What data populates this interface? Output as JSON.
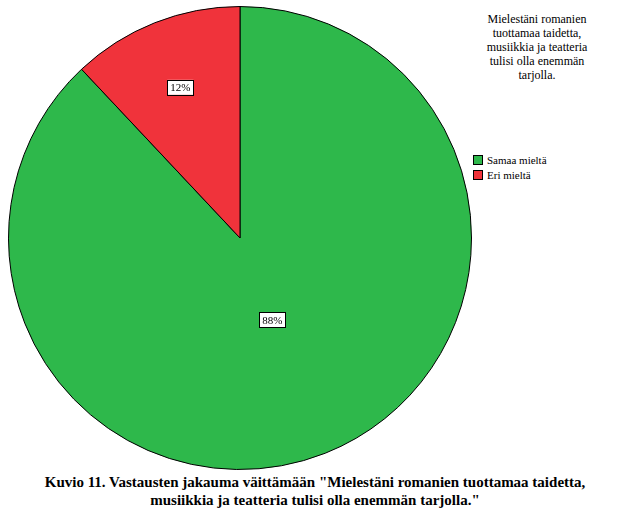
{
  "chart_data": {
    "type": "pie",
    "title": "Kuvio 11. Vastausten jakauma väittämään \"Mielestäni romanien tuottamaa taidetta, musiikkia ja teatteria tulisi olla enemmän tarjolla.\"",
    "legend_title": "Mielestäni romanien tuottamaa taidetta, musiikkia ja teatteria tulisi olla enemmän tarjolla.",
    "categories": [
      "Samaa mieltä",
      "Eri mieltä"
    ],
    "values": [
      88,
      12
    ],
    "value_labels": [
      "88%",
      "12%"
    ],
    "colors": [
      "#2eb84b",
      "#f0333b"
    ],
    "data_labels": true,
    "legend": "right"
  }
}
